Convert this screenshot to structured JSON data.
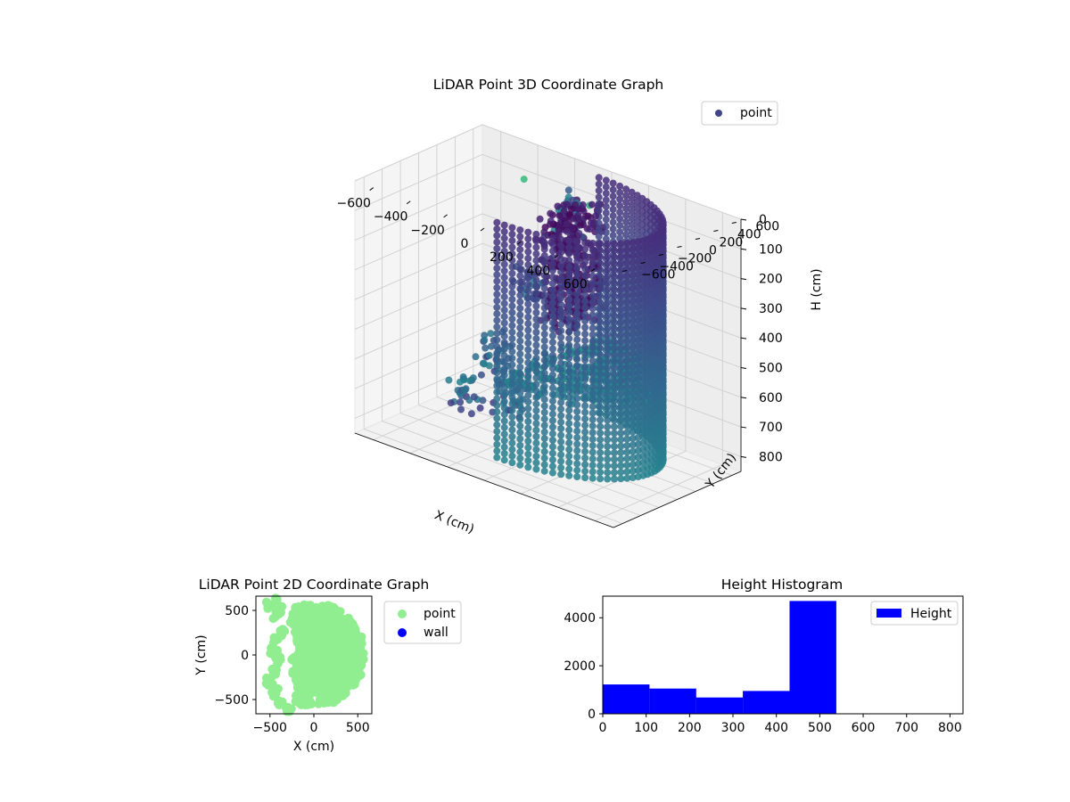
{
  "chart_data": [
    {
      "type": "scatter",
      "projection": "3d",
      "title": "LiDAR Point 3D Coordinate Graph",
      "xlabel": "X (cm)",
      "ylabel": "Y (cm)",
      "zlabel": "H (cm)",
      "xlim": [
        -700,
        700
      ],
      "ylim": [
        -700,
        700
      ],
      "zlim": [
        0,
        850
      ],
      "zaxis_inverted": true,
      "xticks": [
        "−600",
        "−400",
        "−200",
        "0",
        "200",
        "400",
        "600"
      ],
      "yticks": [
        "−600",
        "−400",
        "−200",
        "0",
        "200",
        "400",
        "600"
      ],
      "zticks": [
        "0",
        "100",
        "200",
        "300",
        "400",
        "500",
        "600",
        "700",
        "800"
      ],
      "colormap": "viridis",
      "legend": [
        "point"
      ],
      "legend_position": "top-right",
      "series": [
        {
          "name": "point",
          "description": "Half-cylindrical wall of radius ≈560 cm around the sensor (x ≥ 0), heights 0–800 cm, with sparse scattered clusters at x ≈ −600 to −100 cm",
          "wall_radius": 560,
          "wall_height_range": [
            0,
            800
          ],
          "clusters": [
            {
              "x": -150,
              "y": 550,
              "h": 150
            },
            {
              "x": -300,
              "y": 400,
              "h": 380
            },
            {
              "x": -450,
              "y": 300,
              "h": 650
            },
            {
              "x": -550,
              "y": 200,
              "h": 800
            },
            {
              "x": -200,
              "y": 0,
              "h": 700
            }
          ]
        }
      ],
      "grid": true
    },
    {
      "type": "scatter",
      "title": "LiDAR Point 2D Coordinate Graph",
      "xlabel": "X (cm)",
      "ylabel": "Y (cm)",
      "xlim": [
        -660,
        660
      ],
      "ylim": [
        -660,
        660
      ],
      "xticks": [
        "−500",
        "0",
        "500"
      ],
      "yticks": [
        "−500",
        "0",
        "500"
      ],
      "legend": [
        "point",
        "wall"
      ],
      "legend_position": "outside-right",
      "series": [
        {
          "name": "point",
          "color": "#90ee90",
          "description": "filled disk region of radius ≈580 cm, right side, left edge jagged near x ≈ −250 to −550"
        },
        {
          "name": "wall",
          "color": "#0000ff",
          "points": []
        }
      ]
    },
    {
      "type": "bar",
      "title": "Height Histogram",
      "xlim": [
        0,
        830
      ],
      "ylim": [
        0,
        4900
      ],
      "xticks": [
        "0",
        "100",
        "200",
        "300",
        "400",
        "500",
        "600",
        "700",
        "800"
      ],
      "yticks": [
        "0",
        "2000",
        "4000"
      ],
      "bins": [
        {
          "x0": 0,
          "x1": 100,
          "count": 1220
        },
        {
          "x0": 100,
          "x1": 200,
          "count": 1050
        },
        {
          "x0": 200,
          "x1": 300,
          "count": 680
        },
        {
          "x0": 300,
          "x1": 400,
          "count": 950
        },
        {
          "x0": 400,
          "x1": 500,
          "count": 4700
        }
      ],
      "color": "#0000ff",
      "legend": [
        "Height"
      ],
      "legend_position": "top-right"
    }
  ]
}
